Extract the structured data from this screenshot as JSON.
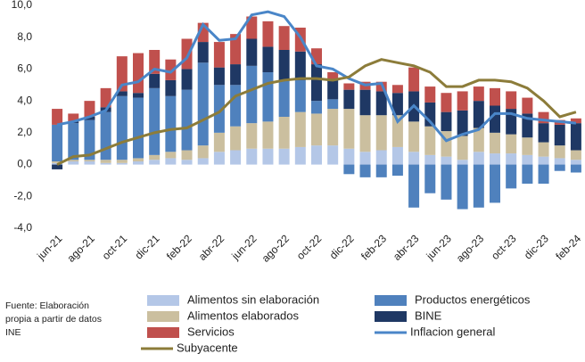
{
  "chart_data": {
    "type": "bar",
    "stacked": true,
    "source": "Fuente:  Elaboración propia a partir de datos INE",
    "categories": [
      "jun-21",
      null,
      "ago-21",
      null,
      "oct-21",
      null,
      "dic-21",
      null,
      "feb-22",
      null,
      "abr-22",
      null,
      "jun-22",
      null,
      "ago-22",
      null,
      "oct-22",
      null,
      "dic-22",
      null,
      "feb-23",
      null,
      "abr-23",
      null,
      "jun-23",
      null,
      "ago-23",
      null,
      "oct-23",
      null,
      "dic-23",
      null,
      "feb-24"
    ],
    "ylim": [
      -4,
      10
    ],
    "yticks": [
      {
        "value": -4,
        "label": "-4,0"
      },
      {
        "value": -2,
        "label": "-2,0"
      },
      {
        "value": 0,
        "label": "0,0"
      },
      {
        "value": 2,
        "label": "2,0"
      },
      {
        "value": 4,
        "label": "4,0"
      },
      {
        "value": 6,
        "label": "6,0"
      },
      {
        "value": 8,
        "label": "8,0"
      },
      {
        "value": 10,
        "label": "10,0"
      }
    ],
    "series": [
      {
        "name": "Alimentos sin elaboración",
        "color": "#b4c7e7",
        "values": [
          0.1,
          0.2,
          0.2,
          0.1,
          0.1,
          0.2,
          0.3,
          0.4,
          0.3,
          0.4,
          0.8,
          0.9,
          1.0,
          1.0,
          1.0,
          1.1,
          1.2,
          1.2,
          1.0,
          0.8,
          0.9,
          1.1,
          0.8,
          0.6,
          0.5,
          0.3,
          0.8,
          0.7,
          0.7,
          0.6,
          0.5,
          0.4,
          0.3
        ]
      },
      {
        "name": "Alimentos elaborados",
        "color": "#cbbf9f",
        "values": [
          0.1,
          0.1,
          0.1,
          0.2,
          0.2,
          0.2,
          0.3,
          0.4,
          0.6,
          0.8,
          1.2,
          1.5,
          1.6,
          1.7,
          2.0,
          2.2,
          2.0,
          2.3,
          2.5,
          2.3,
          2.2,
          2.0,
          1.9,
          1.8,
          1.6,
          1.5,
          1.5,
          1.3,
          1.2,
          1.1,
          0.9,
          0.8,
          0.6
        ]
      },
      {
        "name": "Servicios",
        "color": "#c0504d",
        "values": [
          1.0,
          0.5,
          1.0,
          1.2,
          2.2,
          2.5,
          1.5,
          1.3,
          1.9,
          1.2,
          1.6,
          1.9,
          1.4,
          1.6,
          1.5,
          1.5,
          1.0,
          0.5,
          0.4,
          0.5,
          0.6,
          0.5,
          1.5,
          1.0,
          1.2,
          1.2,
          0.9,
          1.1,
          1.1,
          1.0,
          0.7,
          0.3,
          0.3
        ]
      },
      {
        "name": "Productos energéticos",
        "color": "#4f81bd",
        "values": [
          2.3,
          2.3,
          2.5,
          3.0,
          4.0,
          3.8,
          4.2,
          3.5,
          3.8,
          5.2,
          3.0,
          2.6,
          3.6,
          3.1,
          2.3,
          2.0,
          0.8,
          0.6,
          -0.6,
          -0.8,
          -0.8,
          -0.7,
          -2.7,
          -1.8,
          -2.2,
          -2.8,
          -2.7,
          -2.4,
          -1.5,
          -1.2,
          -1.2,
          -0.4,
          -0.5
        ]
      },
      {
        "name": "BINE",
        "color": "#1f3864",
        "values": [
          -0.3,
          0.1,
          0.2,
          0.3,
          0.3,
          0.3,
          0.9,
          1.0,
          1.3,
          1.3,
          1.1,
          1.3,
          1.7,
          1.6,
          1.9,
          1.8,
          2.3,
          1.2,
          1.2,
          1.6,
          1.5,
          1.4,
          1.9,
          1.5,
          1.2,
          1.6,
          1.7,
          1.7,
          1.6,
          1.5,
          1.2,
          1.3,
          1.7
        ]
      },
      {
        "name": "Inflacion general",
        "color": "#4a86c8",
        "type": "line",
        "values": [
          2.5,
          2.7,
          3.0,
          3.4,
          5.0,
          5.2,
          6.0,
          5.8,
          6.7,
          8.8,
          7.8,
          7.9,
          9.4,
          9.6,
          9.3,
          8.0,
          6.2,
          6.0,
          5.4,
          5.0,
          5.1,
          2.7,
          3.7,
          2.7,
          1.5,
          1.9,
          2.2,
          3.2,
          3.2,
          2.9,
          2.8,
          2.7,
          2.6
        ]
      },
      {
        "name": "Subyacente",
        "color": "#8c7c3a",
        "type": "line",
        "values": [
          0.0,
          0.5,
          0.6,
          1.0,
          1.4,
          1.7,
          2.0,
          2.2,
          2.3,
          2.8,
          3.3,
          4.3,
          4.7,
          5.1,
          5.3,
          5.4,
          5.4,
          5.3,
          5.5,
          6.2,
          6.6,
          6.4,
          6.2,
          5.8,
          4.9,
          4.9,
          5.3,
          5.3,
          5.2,
          4.8,
          4.0,
          3.0,
          3.3
        ]
      }
    ]
  }
}
